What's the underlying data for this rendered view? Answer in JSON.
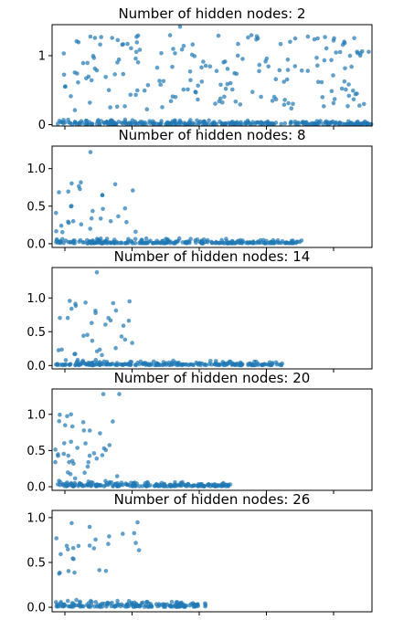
{
  "chart_data": [
    {
      "type": "scatter",
      "title": "Number of hidden nodes: 2",
      "ylim": [
        -0.02,
        1.45
      ],
      "yticks": [
        0,
        1
      ],
      "ytick_labels": [
        "0",
        "1"
      ],
      "xlim": [
        0,
        1
      ],
      "xticks": [
        0.04,
        0.25,
        0.46,
        0.67,
        0.88
      ],
      "grid": false,
      "color": "#1f77b4",
      "x_extent": [
        0,
        1
      ],
      "upper_band": {
        "min": 0.2,
        "max": 1.3
      },
      "outliers": [
        1.42,
        1.29,
        1.28,
        1.25,
        1.22
      ],
      "n_upper": 180,
      "n_lower": 300
    },
    {
      "type": "scatter",
      "title": "Number of hidden nodes: 8",
      "ylim": [
        -0.05,
        1.3
      ],
      "yticks": [
        0,
        0.5,
        1.0
      ],
      "ytick_labels": [
        "0.0",
        "0.5",
        "1.0"
      ],
      "xlim": [
        0,
        1
      ],
      "xticks": [
        0.04,
        0.25,
        0.46,
        0.67,
        0.88
      ],
      "grid": false,
      "color": "#1f77b4",
      "x_extent": [
        0,
        0.78
      ],
      "upper_band": {
        "min": 0.15,
        "max": 0.9
      },
      "outliers": [
        1.22
      ],
      "n_upper": 30,
      "n_lower": 260
    },
    {
      "type": "scatter",
      "title": "Number of hidden nodes: 14",
      "ylim": [
        -0.05,
        1.45
      ],
      "yticks": [
        0,
        0.5,
        1.0
      ],
      "ytick_labels": [
        "0.0",
        "0.5",
        "1.0"
      ],
      "xlim": [
        0,
        1
      ],
      "xticks": [
        0.04,
        0.25,
        0.46,
        0.67,
        0.88
      ],
      "grid": false,
      "color": "#1f77b4",
      "x_extent": [
        0,
        0.72
      ],
      "upper_band": {
        "min": 0.15,
        "max": 1.0
      },
      "outliers": [
        1.38
      ],
      "n_upper": 32,
      "n_lower": 240
    },
    {
      "type": "scatter",
      "title": "Number of hidden nodes: 20",
      "ylim": [
        -0.05,
        1.35
      ],
      "yticks": [
        0,
        0.5,
        1.0
      ],
      "ytick_labels": [
        "0.0",
        "0.5",
        "1.0"
      ],
      "xlim": [
        0,
        1
      ],
      "xticks": [
        0.04,
        0.25,
        0.46,
        0.67,
        0.88
      ],
      "grid": false,
      "color": "#1f77b4",
      "x_extent": [
        0,
        0.56
      ],
      "upper_band": {
        "min": 0.1,
        "max": 1.0
      },
      "outliers": [
        1.28,
        1.28
      ],
      "n_upper": 38,
      "n_lower": 200
    },
    {
      "type": "scatter",
      "title": "Number of hidden nodes: 26",
      "ylim": [
        -0.05,
        1.08
      ],
      "yticks": [
        0,
        0.5,
        1.0
      ],
      "ytick_labels": [
        "0.0",
        "0.5",
        "1.0"
      ],
      "xlim": [
        0,
        1
      ],
      "xticks": [
        0.04,
        0.25,
        0.46,
        0.67,
        0.88
      ],
      "grid": false,
      "color": "#1f77b4",
      "x_extent": [
        0,
        0.48
      ],
      "upper_band": {
        "min": 0.35,
        "max": 1.03
      },
      "outliers": [],
      "n_upper": 26,
      "n_lower": 170
    }
  ]
}
